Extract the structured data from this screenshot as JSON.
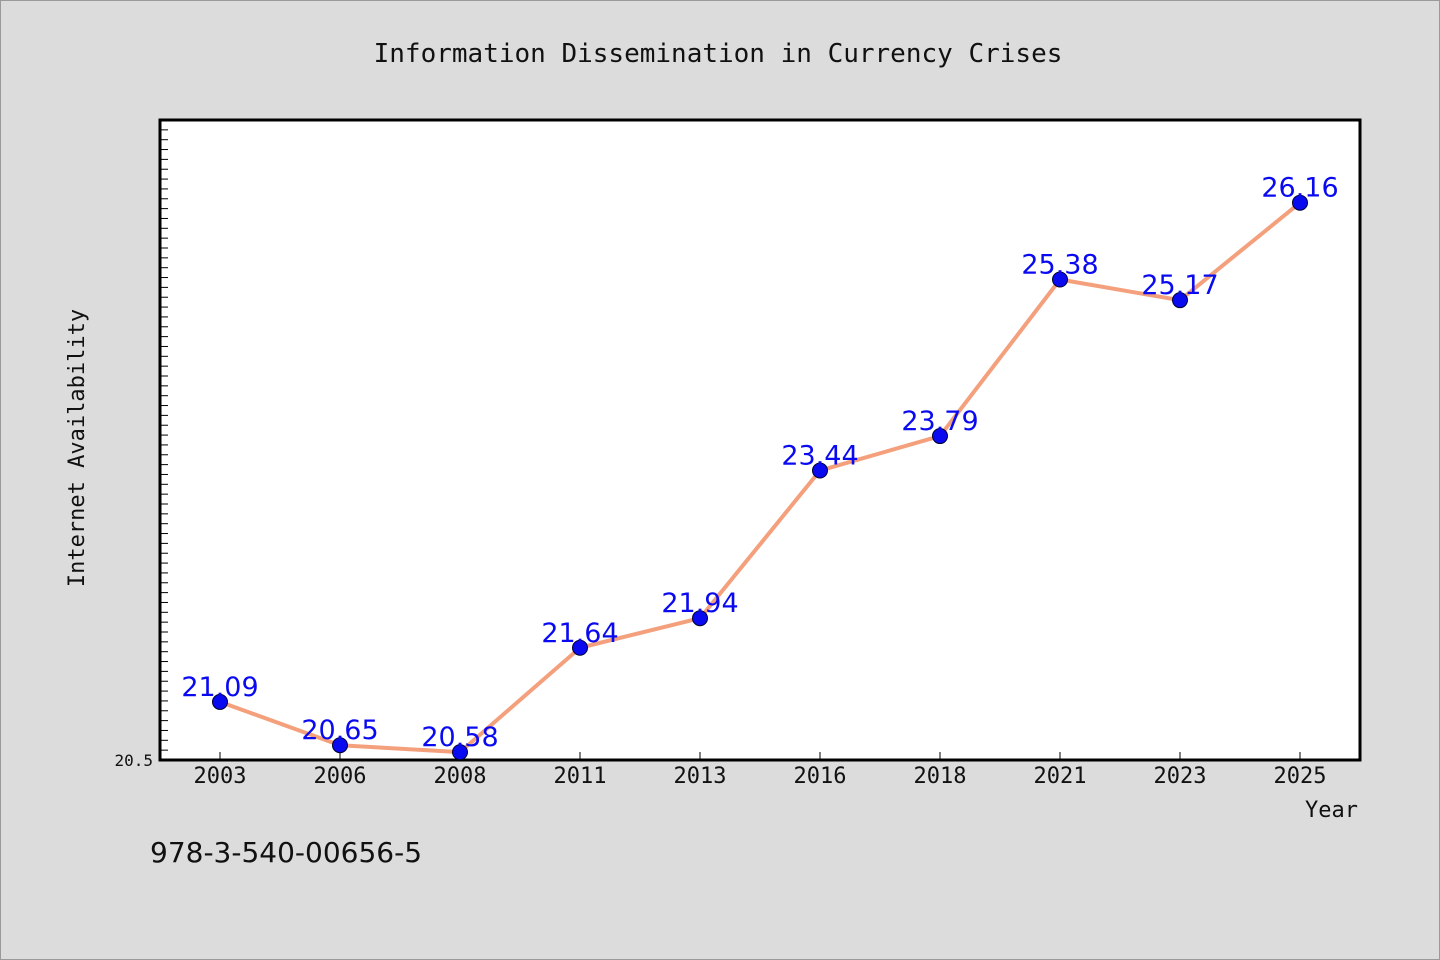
{
  "chart_data": {
    "type": "line",
    "title": "Information Dissemination in Currency Crises",
    "xlabel": "Year",
    "ylabel": "Internet Availability",
    "categories": [
      "2003",
      "2006",
      "2008",
      "2011",
      "2013",
      "2016",
      "2018",
      "2021",
      "2023",
      "2025"
    ],
    "series": [
      {
        "values": [
          21.09,
          20.65,
          20.58,
          21.64,
          21.94,
          23.44,
          23.79,
          25.38,
          25.17,
          26.16
        ]
      }
    ],
    "data_labels": [
      "21.09",
      "20.65",
      "20.58",
      "21.64",
      "21.94",
      "23.44",
      "23.79",
      "25.38",
      "25.17",
      "26.16"
    ],
    "ylim": [
      20.5,
      27.0
    ],
    "ytick_label": "20.5",
    "grid": false,
    "line_color": "#f4a07c",
    "marker_color": "#0a0af0",
    "label_color": "#0a0af0"
  },
  "footer": {
    "isbn": "978-3-540-00656-5"
  }
}
